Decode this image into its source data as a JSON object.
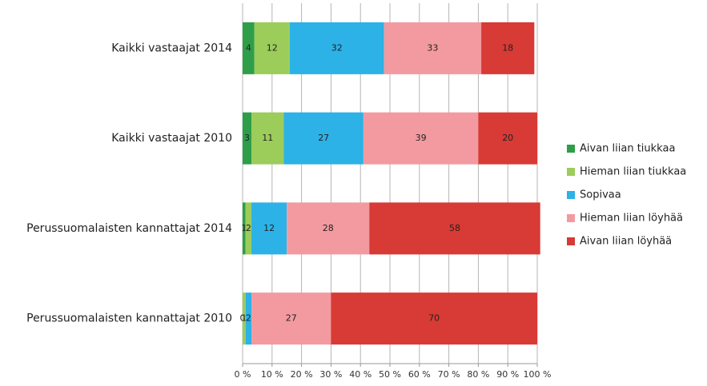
{
  "chart_data": {
    "type": "stacked-bar-horizontal",
    "categories": [
      "Kaikki vastaajat 2014",
      "Kaikki vastaajat 2010",
      "Perussuomalaisten kannattajat 2014",
      "Perussuomalaisten kannattajat 2010"
    ],
    "series": [
      {
        "name": "Aivan liian tiukkaa",
        "color": "#2e9e48",
        "values": [
          4,
          3,
          1,
          0
        ]
      },
      {
        "name": "Hieman liian tiukkaa",
        "color": "#9ccc5a",
        "values": [
          12,
          11,
          2,
          1
        ]
      },
      {
        "name": "Sopivaa",
        "color": "#2cb2e6",
        "values": [
          32,
          27,
          12,
          2
        ]
      },
      {
        "name": "Hieman liian löyhää",
        "color": "#f29aa0",
        "values": [
          33,
          39,
          28,
          27
        ]
      },
      {
        "name": "Aivan liian löyhää",
        "color": "#d83a35",
        "values": [
          18,
          20,
          58,
          70
        ]
      }
    ],
    "xlim": [
      0,
      100
    ],
    "xticks": [
      {
        "value": 0,
        "label": "0 %"
      },
      {
        "value": 10,
        "label": "10 %"
      },
      {
        "value": 20,
        "label": "20 %"
      },
      {
        "value": 30,
        "label": "30 %"
      },
      {
        "value": 40,
        "label": "40 %"
      },
      {
        "value": 50,
        "label": "50 %"
      },
      {
        "value": 60,
        "label": "60 %"
      },
      {
        "value": 70,
        "label": "70 %"
      },
      {
        "value": 80,
        "label": "80 %"
      },
      {
        "value": 90,
        "label": "90 %"
      },
      {
        "value": 100,
        "label": "100 %"
      }
    ],
    "grid": true,
    "legend": "right"
  }
}
